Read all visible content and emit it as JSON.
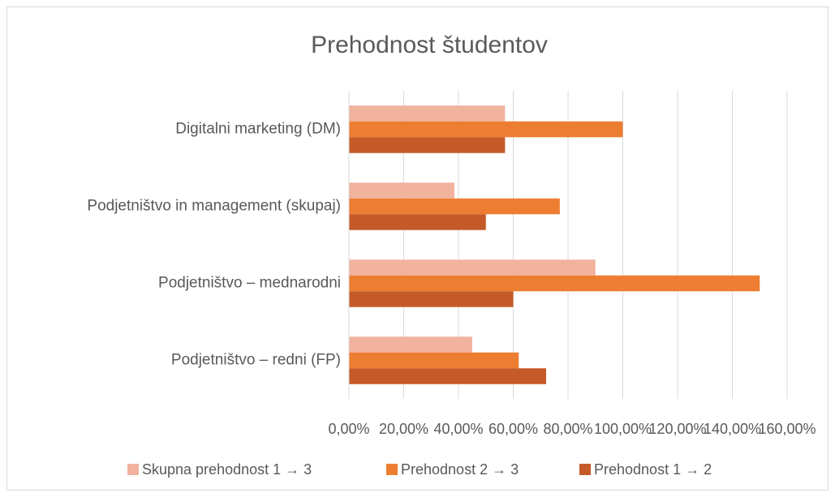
{
  "chart_data": {
    "type": "bar",
    "orientation": "horizontal",
    "title": "Prehodnost študentov",
    "categories": [
      "Digitalni marketing (DM)",
      "Podjetništvo in management (skupaj)",
      "Podjetništvo – mednarodni",
      "Podjetništvo – redni (FP)"
    ],
    "series": [
      {
        "name": "Skupna prehodnost 1 → 3",
        "color": "#f1b29e",
        "values": [
          57,
          38.5,
          90,
          45
        ]
      },
      {
        "name": "Prehodnost 2 → 3",
        "color": "#ed7d31",
        "values": [
          100,
          77,
          150,
          62
        ]
      },
      {
        "name": "Prehodnost 1 → 2",
        "color": "#c55a28",
        "values": [
          57,
          50,
          60,
          72
        ]
      }
    ],
    "xlim": [
      0,
      160
    ],
    "xticks": [
      {
        "value": 0,
        "label": "0,00%"
      },
      {
        "value": 20,
        "label": "20,00%"
      },
      {
        "value": 40,
        "label": "40,00%"
      },
      {
        "value": 60,
        "label": "60,00%"
      },
      {
        "value": 80,
        "label": "80,00%"
      },
      {
        "value": 100,
        "label": "100,00%"
      },
      {
        "value": 120,
        "label": "120,00%"
      },
      {
        "value": 140,
        "label": "140,00%"
      },
      {
        "value": 160,
        "label": "160,00%"
      }
    ],
    "grid": true,
    "legend": "bottom"
  }
}
